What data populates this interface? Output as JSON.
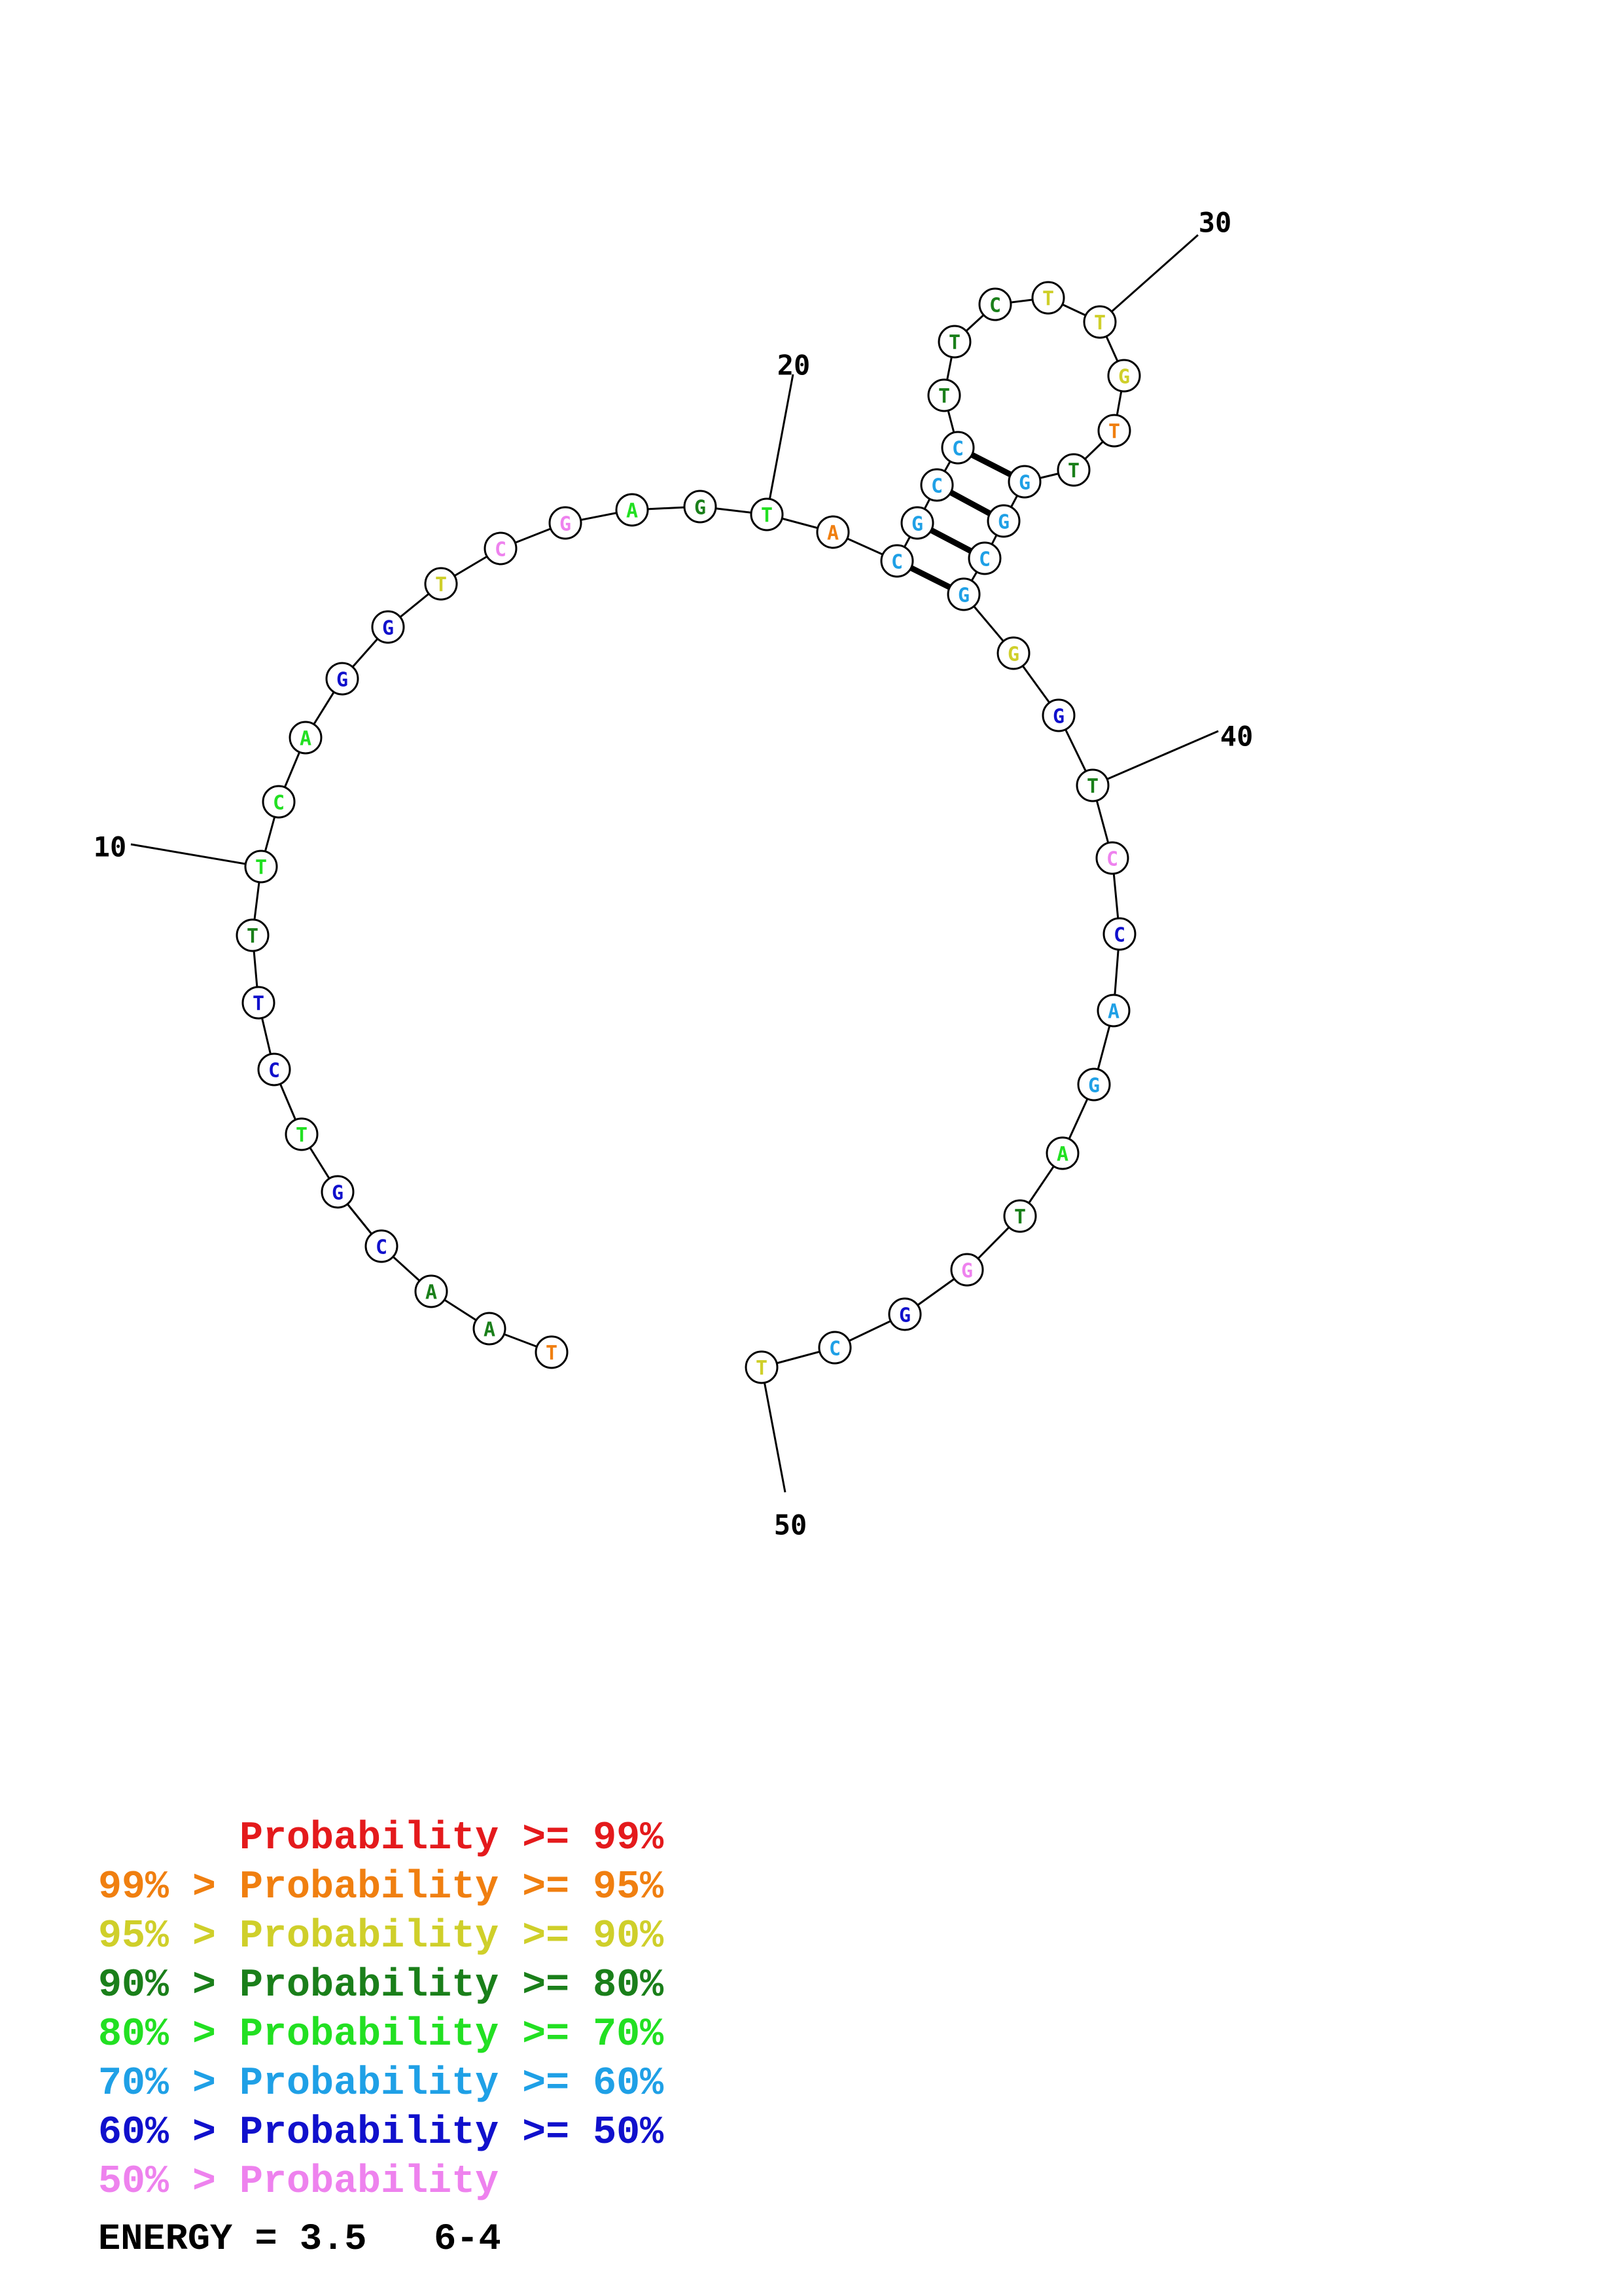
{
  "colors": {
    "p99": "#e41a1c",
    "p95": "#f07f10",
    "p90": "#cfcf2a",
    "p80": "#1a7f1a",
    "p70": "#22e022",
    "p60": "#1fa0e6",
    "p50": "#1010cc",
    "plow": "#ee82ee"
  },
  "sequence": [
    {
      "base": "T",
      "color": "p95"
    },
    {
      "base": "A",
      "color": "p80"
    },
    {
      "base": "A",
      "color": "p80"
    },
    {
      "base": "C",
      "color": "p50"
    },
    {
      "base": "G",
      "color": "p50"
    },
    {
      "base": "T",
      "color": "p70"
    },
    {
      "base": "C",
      "color": "p50"
    },
    {
      "base": "T",
      "color": "p50"
    },
    {
      "base": "T",
      "color": "p80"
    },
    {
      "base": "T",
      "color": "p70"
    },
    {
      "base": "C",
      "color": "p70"
    },
    {
      "base": "A",
      "color": "p70"
    },
    {
      "base": "G",
      "color": "p50"
    },
    {
      "base": "G",
      "color": "p50"
    },
    {
      "base": "T",
      "color": "p90"
    },
    {
      "base": "C",
      "color": "plow"
    },
    {
      "base": "G",
      "color": "plow"
    },
    {
      "base": "A",
      "color": "p70"
    },
    {
      "base": "G",
      "color": "p80"
    },
    {
      "base": "T",
      "color": "p70"
    },
    {
      "base": "A",
      "color": "p95"
    },
    {
      "base": "C",
      "color": "p60"
    },
    {
      "base": "G",
      "color": "p60"
    },
    {
      "base": "C",
      "color": "p60"
    },
    {
      "base": "C",
      "color": "p60"
    },
    {
      "base": "T",
      "color": "p80"
    },
    {
      "base": "T",
      "color": "p80"
    },
    {
      "base": "C",
      "color": "p80"
    },
    {
      "base": "T",
      "color": "p90"
    },
    {
      "base": "T",
      "color": "p90"
    },
    {
      "base": "G",
      "color": "p90"
    },
    {
      "base": "T",
      "color": "p95"
    },
    {
      "base": "T",
      "color": "p80"
    },
    {
      "base": "G",
      "color": "p60"
    },
    {
      "base": "G",
      "color": "p60"
    },
    {
      "base": "C",
      "color": "p60"
    },
    {
      "base": "G",
      "color": "p60"
    },
    {
      "base": "G",
      "color": "p90"
    },
    {
      "base": "G",
      "color": "p50"
    },
    {
      "base": "T",
      "color": "p80"
    },
    {
      "base": "C",
      "color": "plow"
    },
    {
      "base": "C",
      "color": "p50"
    },
    {
      "base": "A",
      "color": "p60"
    },
    {
      "base": "G",
      "color": "p60"
    },
    {
      "base": "A",
      "color": "p70"
    },
    {
      "base": "T",
      "color": "p80"
    },
    {
      "base": "G",
      "color": "plow"
    },
    {
      "base": "G",
      "color": "p50"
    },
    {
      "base": "C",
      "color": "p60"
    },
    {
      "base": "T",
      "color": "p90"
    }
  ],
  "position_labels": [
    {
      "index": 10,
      "text": "10"
    },
    {
      "index": 20,
      "text": "20"
    },
    {
      "index": 30,
      "text": "30"
    },
    {
      "index": 40,
      "text": "40"
    },
    {
      "index": 50,
      "text": "50"
    }
  ],
  "pairs": [
    [
      22,
      37
    ],
    [
      23,
      36
    ],
    [
      24,
      35
    ],
    [
      25,
      34
    ]
  ],
  "legend": [
    {
      "prefix": "",
      "label": "Probability >= 99%",
      "color": "p99"
    },
    {
      "prefix": "99% > ",
      "label": "Probability >= 95%",
      "color": "p95"
    },
    {
      "prefix": "95% > ",
      "label": "Probability >= 90%",
      "color": "p90"
    },
    {
      "prefix": "90% > ",
      "label": "Probability >= 80%",
      "color": "p80"
    },
    {
      "prefix": "80% > ",
      "label": "Probability >= 70%",
      "color": "p70"
    },
    {
      "prefix": "70% > ",
      "label": "Probability >= 60%",
      "color": "p60"
    },
    {
      "prefix": "60% > ",
      "label": "Probability >= 50%",
      "color": "p50"
    },
    {
      "prefix": "50% > ",
      "label": "Probability",
      "color": "plow"
    }
  ],
  "energy": "ENERGY = 3.5   6-4"
}
